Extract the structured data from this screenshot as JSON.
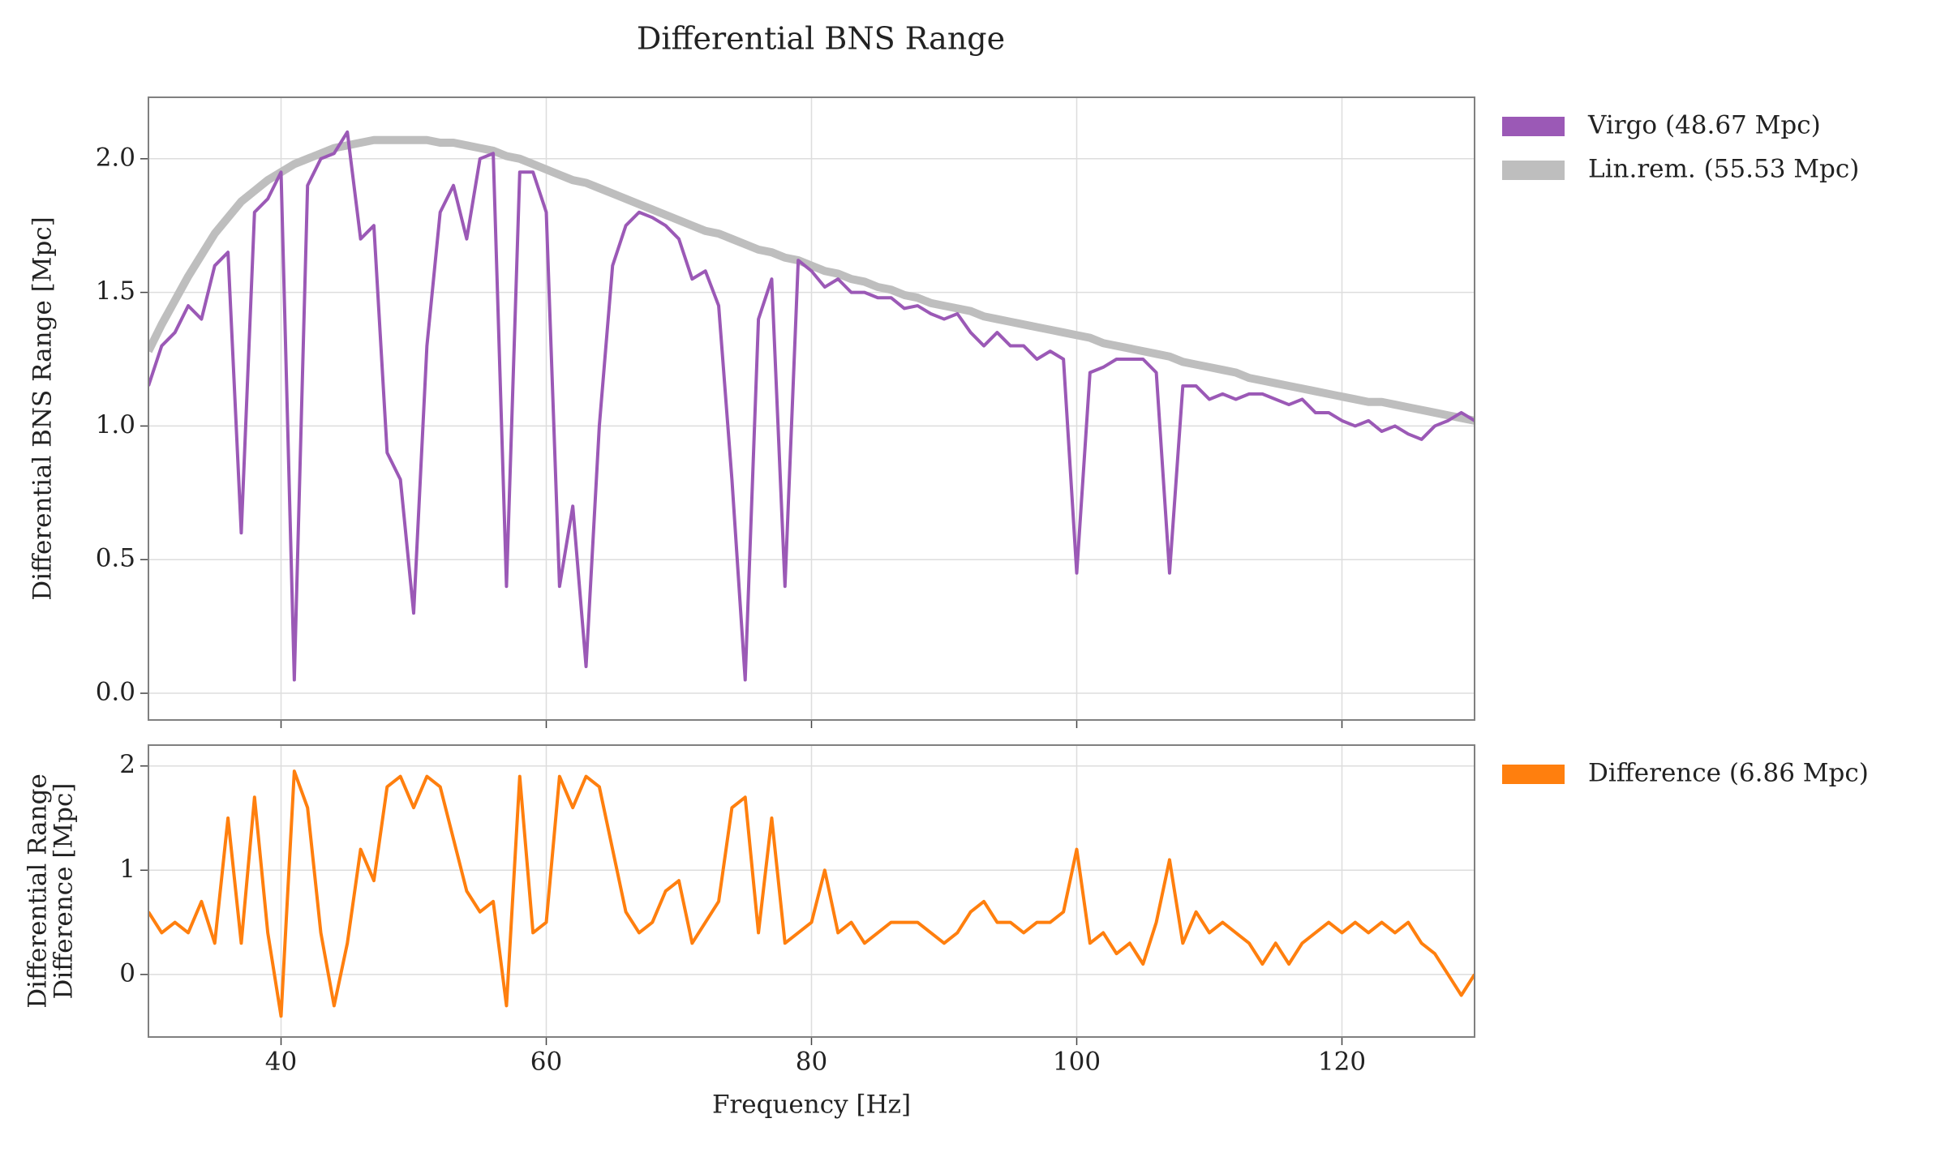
{
  "chart_data": [
    {
      "type": "line",
      "title": "Differential BNS Range",
      "y_label": "Differential BNS Range [Mpc]",
      "x": [
        30,
        31,
        32,
        33,
        34,
        35,
        36,
        37,
        38,
        39,
        40,
        41,
        42,
        43,
        44,
        45,
        46,
        47,
        48,
        49,
        50,
        51,
        52,
        53,
        54,
        55,
        56,
        57,
        58,
        59,
        60,
        61,
        62,
        63,
        64,
        65,
        66,
        67,
        68,
        69,
        70,
        71,
        72,
        73,
        74,
        75,
        76,
        77,
        78,
        79,
        80,
        81,
        82,
        83,
        84,
        85,
        86,
        87,
        88,
        89,
        90,
        91,
        92,
        93,
        94,
        95,
        96,
        97,
        98,
        99,
        100,
        101,
        102,
        103,
        104,
        105,
        106,
        107,
        108,
        109,
        110,
        111,
        112,
        113,
        114,
        115,
        116,
        117,
        118,
        119,
        120,
        121,
        122,
        123,
        124,
        125,
        126,
        127,
        128,
        129,
        130
      ],
      "series": [
        {
          "name": "Lin.rem. (55.53 Mpc)",
          "color": "#bebebe",
          "values": [
            1.28,
            1.38,
            1.47,
            1.56,
            1.64,
            1.72,
            1.78,
            1.84,
            1.88,
            1.92,
            1.95,
            1.98,
            2.0,
            2.02,
            2.04,
            2.05,
            2.06,
            2.07,
            2.07,
            2.07,
            2.07,
            2.07,
            2.06,
            2.06,
            2.05,
            2.04,
            2.03,
            2.01,
            2.0,
            1.98,
            1.96,
            1.94,
            1.92,
            1.91,
            1.89,
            1.87,
            1.85,
            1.83,
            1.81,
            1.79,
            1.77,
            1.75,
            1.73,
            1.72,
            1.7,
            1.68,
            1.66,
            1.65,
            1.63,
            1.62,
            1.6,
            1.58,
            1.57,
            1.55,
            1.54,
            1.52,
            1.51,
            1.49,
            1.48,
            1.46,
            1.45,
            1.44,
            1.43,
            1.41,
            1.4,
            1.39,
            1.38,
            1.37,
            1.36,
            1.35,
            1.34,
            1.33,
            1.31,
            1.3,
            1.29,
            1.28,
            1.27,
            1.26,
            1.24,
            1.23,
            1.22,
            1.21,
            1.2,
            1.18,
            1.17,
            1.16,
            1.15,
            1.14,
            1.13,
            1.12,
            1.11,
            1.1,
            1.09,
            1.09,
            1.08,
            1.07,
            1.06,
            1.05,
            1.04,
            1.03,
            1.02
          ]
        },
        {
          "name": "Virgo (48.67 Mpc)",
          "color": "#9b59b6",
          "values": [
            1.15,
            1.3,
            1.35,
            1.45,
            1.4,
            1.6,
            1.65,
            0.6,
            1.8,
            1.85,
            1.95,
            0.05,
            1.9,
            2.0,
            2.02,
            2.1,
            1.7,
            1.75,
            0.9,
            0.8,
            0.3,
            1.3,
            1.8,
            1.9,
            1.7,
            2.0,
            2.02,
            0.4,
            1.95,
            1.95,
            1.8,
            0.4,
            0.7,
            0.1,
            1.0,
            1.6,
            1.75,
            1.8,
            1.78,
            1.75,
            1.7,
            1.55,
            1.58,
            1.45,
            0.8,
            0.05,
            1.4,
            1.55,
            0.4,
            1.62,
            1.58,
            1.52,
            1.55,
            1.5,
            1.5,
            1.48,
            1.48,
            1.44,
            1.45,
            1.42,
            1.4,
            1.42,
            1.35,
            1.3,
            1.35,
            1.3,
            1.3,
            1.25,
            1.28,
            1.25,
            0.45,
            1.2,
            1.22,
            1.25,
            1.25,
            1.25,
            1.2,
            0.45,
            1.15,
            1.15,
            1.1,
            1.12,
            1.1,
            1.12,
            1.12,
            1.1,
            1.08,
            1.1,
            1.05,
            1.05,
            1.02,
            1.0,
            1.02,
            0.98,
            1.0,
            0.97,
            0.95,
            1.0,
            1.02,
            1.05,
            1.02
          ]
        }
      ],
      "legend_order": [
        1,
        0
      ],
      "xlim": [
        30,
        130
      ],
      "xticks": [
        40,
        60,
        80,
        100,
        120
      ],
      "ylim": [
        -0.1,
        2.23
      ],
      "yticks": [
        {
          "value": 0,
          "label": "0.0"
        },
        {
          "value": 0.5,
          "label": "0.5"
        },
        {
          "value": 1,
          "label": "1.0"
        },
        {
          "value": 1.5,
          "label": "1.5"
        },
        {
          "value": 2,
          "label": "2.0"
        }
      ],
      "grid": true,
      "legend": "outside right"
    },
    {
      "type": "line",
      "x_label": "Frequency [Hz]",
      "y_label": [
        "Differential Range",
        "Difference [Mpc]"
      ],
      "x": [
        30,
        31,
        32,
        33,
        34,
        35,
        36,
        37,
        38,
        39,
        40,
        41,
        42,
        43,
        44,
        45,
        46,
        47,
        48,
        49,
        50,
        51,
        52,
        53,
        54,
        55,
        56,
        57,
        58,
        59,
        60,
        61,
        62,
        63,
        64,
        65,
        66,
        67,
        68,
        69,
        70,
        71,
        72,
        73,
        74,
        75,
        76,
        77,
        78,
        79,
        80,
        81,
        82,
        83,
        84,
        85,
        86,
        87,
        88,
        89,
        90,
        91,
        92,
        93,
        94,
        95,
        96,
        97,
        98,
        99,
        100,
        101,
        102,
        103,
        104,
        105,
        106,
        107,
        108,
        109,
        110,
        111,
        112,
        113,
        114,
        115,
        116,
        117,
        118,
        119,
        120,
        121,
        122,
        123,
        124,
        125,
        126,
        127,
        128,
        129,
        130
      ],
      "series": [
        {
          "name": "Difference (6.86 Mpc)",
          "color": "#ff7f0e",
          "values": [
            0.6,
            0.4,
            0.5,
            0.4,
            0.7,
            0.3,
            1.5,
            0.3,
            1.7,
            0.4,
            -0.4,
            1.95,
            1.6,
            0.4,
            -0.3,
            0.3,
            1.2,
            0.9,
            1.8,
            1.9,
            1.6,
            1.9,
            1.8,
            1.3,
            0.8,
            0.6,
            0.7,
            -0.3,
            1.9,
            0.4,
            0.5,
            1.9,
            1.6,
            1.9,
            1.8,
            1.2,
            0.6,
            0.4,
            0.5,
            0.8,
            0.9,
            0.3,
            0.5,
            0.7,
            1.6,
            1.7,
            0.4,
            1.5,
            0.3,
            0.4,
            0.5,
            1.0,
            0.4,
            0.5,
            0.3,
            0.4,
            0.5,
            0.5,
            0.5,
            0.4,
            0.3,
            0.4,
            0.6,
            0.7,
            0.5,
            0.5,
            0.4,
            0.5,
            0.5,
            0.6,
            1.2,
            0.3,
            0.4,
            0.2,
            0.3,
            0.1,
            0.5,
            1.1,
            0.3,
            0.6,
            0.4,
            0.5,
            0.4,
            0.3,
            0.1,
            0.3,
            0.1,
            0.3,
            0.4,
            0.5,
            0.4,
            0.5,
            0.4,
            0.5,
            0.4,
            0.5,
            0.3,
            0.2,
            0.0,
            -0.2,
            0.0
          ]
        }
      ],
      "xlim": [
        30,
        130
      ],
      "xticks": [
        40,
        60,
        80,
        100,
        120
      ],
      "ylim": [
        -0.6,
        2.2
      ],
      "yticks": [
        0,
        1,
        2
      ],
      "grid": true,
      "legend": "outside right"
    }
  ]
}
